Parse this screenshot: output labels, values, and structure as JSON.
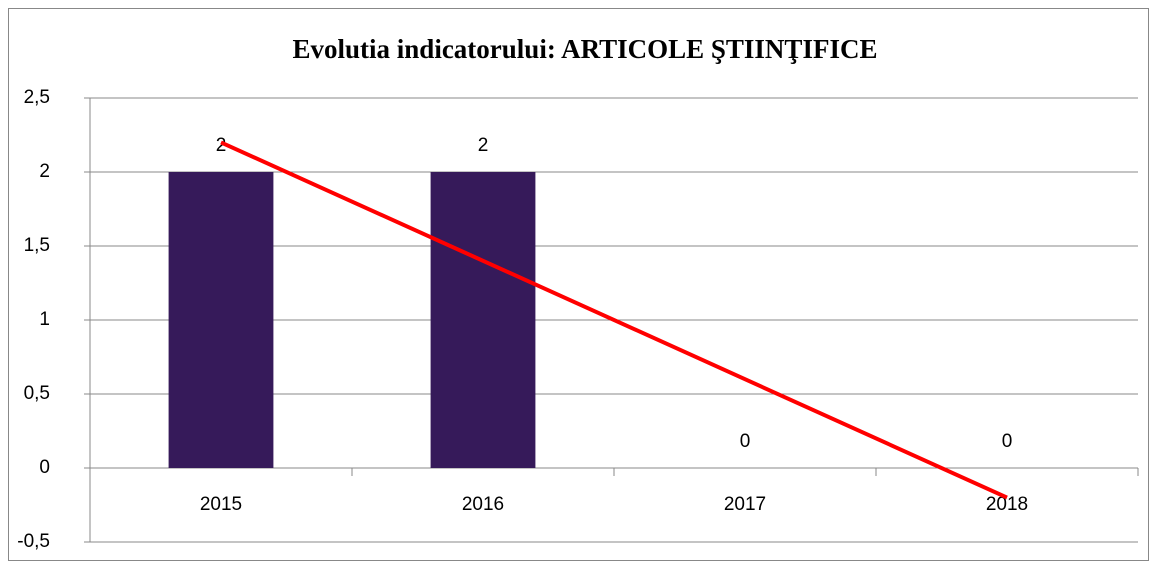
{
  "chart_data": {
    "type": "bar",
    "title": "Evolutia indicatorului: ARTICOLE ŞTIINŢIFICE",
    "categories": [
      "2015",
      "2016",
      "2017",
      "2018"
    ],
    "values": [
      2,
      2,
      0,
      0
    ],
    "color": "#361a5a",
    "trendline": {
      "color": "#ff0000",
      "values": [
        2.2,
        1.4,
        0.6,
        -0.2
      ]
    },
    "ylim": [
      -0.5,
      2.5
    ],
    "yticks": [
      {
        "value": -0.5,
        "label": "-0,5"
      },
      0,
      {
        "value": 0.5,
        "label": "0,5"
      },
      1,
      {
        "value": 1.5,
        "label": "1,5"
      },
      2,
      {
        "value": 2.5,
        "label": "2,5"
      }
    ],
    "grid": true
  }
}
